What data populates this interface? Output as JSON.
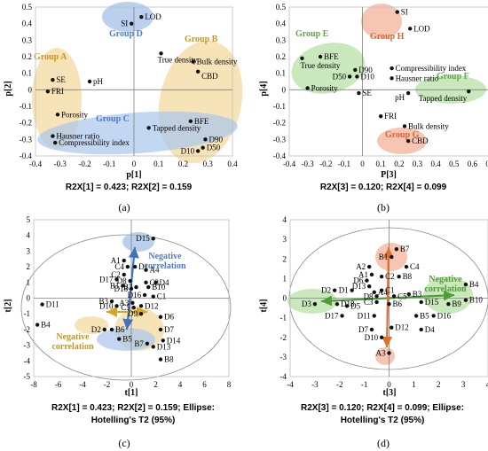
{
  "chart_data": [
    {
      "id": "a",
      "type": "scatter",
      "panel_label": "(a)",
      "xlabel": "p[1]",
      "ylabel": "p[2]",
      "xlim": [
        -0.4,
        0.4
      ],
      "ylim": [
        -0.4,
        0.5
      ],
      "xticks": [
        -0.4,
        -0.3,
        -0.2,
        -0.1,
        0,
        0.1,
        0.2,
        0.3,
        0.4
      ],
      "yticks": [
        -0.4,
        -0.3,
        -0.2,
        -0.1,
        0,
        0.1,
        0.2,
        0.3,
        0.4,
        0.5
      ],
      "caption": "R2X[1] = 0.423; R2X[2] = 0.159",
      "points": [
        {
          "label": "LOD",
          "x": 0.03,
          "y": 0.44
        },
        {
          "label": "SI",
          "x": -0.01,
          "y": 0.4
        },
        {
          "label": "True density",
          "x": 0.11,
          "y": 0.22
        },
        {
          "label": "Bulk density",
          "x": 0.24,
          "y": 0.17
        },
        {
          "label": "CBD",
          "x": 0.26,
          "y": 0.11
        },
        {
          "label": "SE",
          "x": -0.33,
          "y": 0.06
        },
        {
          "label": "pH",
          "x": -0.18,
          "y": 0.05
        },
        {
          "label": "FRI",
          "x": -0.35,
          "y": -0.01
        },
        {
          "label": "Porosity",
          "x": -0.31,
          "y": -0.15
        },
        {
          "label": "BFE",
          "x": 0.23,
          "y": -0.19
        },
        {
          "label": "Tapped density",
          "x": 0.06,
          "y": -0.23
        },
        {
          "label": "Hausner ratio",
          "x": -0.33,
          "y": -0.28
        },
        {
          "label": "Compressibility index",
          "x": -0.32,
          "y": -0.32
        },
        {
          "label": "D90",
          "x": 0.29,
          "y": -0.3
        },
        {
          "label": "D50",
          "x": 0.28,
          "y": -0.35
        },
        {
          "label": "D10",
          "x": 0.26,
          "y": -0.37
        }
      ],
      "groups": [
        {
          "label": "Group D",
          "color": "#5B8FD6"
        },
        {
          "label": "Group A",
          "color": "#E0B040"
        },
        {
          "label": "Group B",
          "color": "#E0B040"
        },
        {
          "label": "Group C",
          "color": "#5B8FD6"
        }
      ]
    },
    {
      "id": "b",
      "type": "scatter",
      "panel_label": "(b)",
      "xlabel": "P[3]",
      "ylabel": "p[4]",
      "xlim": [
        -0.4,
        0.7
      ],
      "ylim": [
        -0.4,
        0.5
      ],
      "xticks": [
        -0.4,
        -0.3,
        -0.2,
        -0.1,
        0,
        0.1,
        0.2,
        0.3,
        0.4,
        0.5,
        0.6,
        0.7
      ],
      "yticks": [
        -0.4,
        -0.3,
        -0.2,
        -0.1,
        0,
        0.1,
        0.2,
        0.3,
        0.4,
        0.5
      ],
      "caption": "R2X[3] = 0.120; R2X[4] = 0.099",
      "points": [
        {
          "label": "SI",
          "x": 0.19,
          "y": 0.47
        },
        {
          "label": "LOD",
          "x": 0.26,
          "y": 0.37
        },
        {
          "label": "BFE",
          "x": -0.23,
          "y": 0.2
        },
        {
          "label": "True density",
          "x": -0.33,
          "y": 0.19
        },
        {
          "label": "D90",
          "x": -0.04,
          "y": 0.12
        },
        {
          "label": "Compressibility index",
          "x": 0.16,
          "y": 0.13
        },
        {
          "label": "D50",
          "x": -0.07,
          "y": 0.08
        },
        {
          "label": "D10",
          "x": -0.03,
          "y": 0.08
        },
        {
          "label": "Hausner ratio",
          "x": 0.16,
          "y": 0.07
        },
        {
          "label": "Porosity",
          "x": -0.3,
          "y": 0.01
        },
        {
          "label": "SE",
          "x": -0.02,
          "y": -0.02
        },
        {
          "label": "pH",
          "x": 0.25,
          "y": -0.02
        },
        {
          "label": "Tapped density",
          "x": 0.58,
          "y": -0.01
        },
        {
          "label": "FRI",
          "x": 0.1,
          "y": -0.16
        },
        {
          "label": "Bulk density",
          "x": 0.23,
          "y": -0.22
        },
        {
          "label": "CBD",
          "x": 0.25,
          "y": -0.31
        }
      ],
      "groups": [
        {
          "label": "Group H",
          "color": "#E6825A"
        },
        {
          "label": "Group E",
          "color": "#7CC06A"
        },
        {
          "label": "Group F",
          "color": "#7CC06A"
        },
        {
          "label": "Group G",
          "color": "#E6825A"
        }
      ]
    },
    {
      "id": "c",
      "type": "scatter",
      "panel_label": "(c)",
      "xlabel": "t[1]",
      "ylabel": "t[2]",
      "xlim": [
        -8,
        8
      ],
      "ylim": [
        -5,
        5
      ],
      "xticks": [
        -8,
        -6,
        -4,
        -2,
        0,
        2,
        4,
        6,
        8
      ],
      "yticks": [
        -5,
        -4,
        -3,
        -2,
        -1,
        0,
        1,
        2,
        3,
        4,
        5
      ],
      "caption": "R2X[1] = 0.423; R2X[2] = 0.159; Ellipse: Hotelling's T2 (95%)",
      "annotations": [
        "Negative correlation",
        "Negative correlation"
      ],
      "points": [
        {
          "label": "D15",
          "x": 1.8,
          "y": 3.8
        },
        {
          "label": "A1",
          "x": -0.6,
          "y": 2.4
        },
        {
          "label": "C4",
          "x": -0.3,
          "y": 2.0
        },
        {
          "label": "D1",
          "x": 0.3,
          "y": 2.0
        },
        {
          "label": "A4",
          "x": 1.2,
          "y": 1.8
        },
        {
          "label": "C2",
          "x": -0.6,
          "y": 1.5
        },
        {
          "label": "D17",
          "x": -1.2,
          "y": 1.2
        },
        {
          "label": "D8",
          "x": -0.1,
          "y": 1.1
        },
        {
          "label": "B2",
          "x": 0.4,
          "y": 0.7
        },
        {
          "label": "C3",
          "x": 1.2,
          "y": 1.0
        },
        {
          "label": "B10",
          "x": 1.4,
          "y": 0.7
        },
        {
          "label": "D4",
          "x": 2.0,
          "y": 1.0
        },
        {
          "label": "B1",
          "x": -0.7,
          "y": 0.8
        },
        {
          "label": "D18",
          "x": 0.0,
          "y": 0.6
        },
        {
          "label": "A3",
          "x": 0.1,
          "y": -0.3
        },
        {
          "label": "D16",
          "x": 1.1,
          "y": 0.2
        },
        {
          "label": "C1",
          "x": 1.8,
          "y": 0.1
        },
        {
          "label": "B3",
          "x": -1.6,
          "y": -0.2
        },
        {
          "label": "D10",
          "x": -1.2,
          "y": -0.5
        },
        {
          "label": "C5",
          "x": 0.2,
          "y": -0.6
        },
        {
          "label": "D12",
          "x": 0.8,
          "y": -0.5
        },
        {
          "label": "D9",
          "x": 0.8,
          "y": -1.0
        },
        {
          "label": "D11",
          "x": -7.3,
          "y": -0.4
        },
        {
          "label": "B4",
          "x": -7.7,
          "y": -1.7
        },
        {
          "label": "D2",
          "x": -2.2,
          "y": -2.0
        },
        {
          "label": "B6",
          "x": -1.6,
          "y": -2.0
        },
        {
          "label": "D6",
          "x": 2.4,
          "y": -1.2
        },
        {
          "label": "D7",
          "x": 2.4,
          "y": -2.0
        },
        {
          "label": "B5",
          "x": -1.0,
          "y": -2.6
        },
        {
          "label": "B7",
          "x": 1.3,
          "y": -2.9
        },
        {
          "label": "D13",
          "x": 1.8,
          "y": -3.1
        },
        {
          "label": "D14",
          "x": 2.6,
          "y": -2.7
        },
        {
          "label": "B8",
          "x": 2.4,
          "y": -3.9
        }
      ]
    },
    {
      "id": "d",
      "type": "scatter",
      "panel_label": "(d)",
      "xlabel": "t[3]",
      "ylabel": "t[4]",
      "xlim": [
        -4,
        4
      ],
      "ylim": [
        -4,
        4
      ],
      "xticks": [
        -4,
        -3,
        -2,
        -1,
        0,
        1,
        2,
        3,
        4
      ],
      "yticks": [
        -4,
        -3,
        -2,
        -1,
        0,
        1,
        2,
        3,
        4
      ],
      "caption": "R2X[3] = 0.120; R2X[4] = 0.099; Ellipse: Hotelling's T2 (95%)",
      "annotations": [
        "Negative correlation"
      ],
      "points": [
        {
          "label": "B7",
          "x": 0.3,
          "y": 2.5
        },
        {
          "label": "B1",
          "x": 0.1,
          "y": 2.1
        },
        {
          "label": "C4",
          "x": 0.7,
          "y": 1.6
        },
        {
          "label": "A2",
          "x": -0.8,
          "y": 1.6
        },
        {
          "label": "A1",
          "x": -0.7,
          "y": 1.2
        },
        {
          "label": "B8",
          "x": 0.4,
          "y": 1.1
        },
        {
          "label": "C2",
          "x": -0.3,
          "y": 1.1
        },
        {
          "label": "D6",
          "x": -0.9,
          "y": 0.9
        },
        {
          "label": "D13",
          "x": -0.8,
          "y": 0.6
        },
        {
          "label": "B4",
          "x": 3.1,
          "y": 0.7
        },
        {
          "label": "D2",
          "x": -2.2,
          "y": 0.4
        },
        {
          "label": "D1",
          "x": -1.5,
          "y": 0.4
        },
        {
          "label": "C1",
          "x": -0.3,
          "y": 0.4
        },
        {
          "label": "B3",
          "x": 0.8,
          "y": 0.2
        },
        {
          "label": "D8",
          "x": -0.5,
          "y": 0.1
        },
        {
          "label": "A4",
          "x": -0.6,
          "y": 0.3
        },
        {
          "label": "C5",
          "x": 0.2,
          "y": 0.1
        },
        {
          "label": "B10",
          "x": 3.1,
          "y": -0.1
        },
        {
          "label": "D15",
          "x": 1.3,
          "y": -0.2
        },
        {
          "label": "B9",
          "x": 2.4,
          "y": -0.3
        },
        {
          "label": "D3",
          "x": -3.0,
          "y": -0.3
        },
        {
          "label": "D18",
          "x": -2.1,
          "y": -0.3
        },
        {
          "label": "D5",
          "x": -1.7,
          "y": -0.4
        },
        {
          "label": "C3",
          "x": -0.5,
          "y": -0.2
        },
        {
          "label": "B6",
          "x": 0.0,
          "y": -0.3
        },
        {
          "label": "D17",
          "x": -1.9,
          "y": -0.9
        },
        {
          "label": "D11",
          "x": -0.6,
          "y": -0.9
        },
        {
          "label": "B5",
          "x": 1.1,
          "y": -0.9
        },
        {
          "label": "D16",
          "x": 1.8,
          "y": -0.9
        },
        {
          "label": "D7",
          "x": -0.7,
          "y": -1.6
        },
        {
          "label": "D12",
          "x": 0.1,
          "y": -1.5
        },
        {
          "label": "D4",
          "x": 1.3,
          "y": -1.6
        },
        {
          "label": "D10",
          "x": -0.3,
          "y": -2.0
        },
        {
          "label": "A3",
          "x": 0.0,
          "y": -2.8
        }
      ]
    }
  ]
}
